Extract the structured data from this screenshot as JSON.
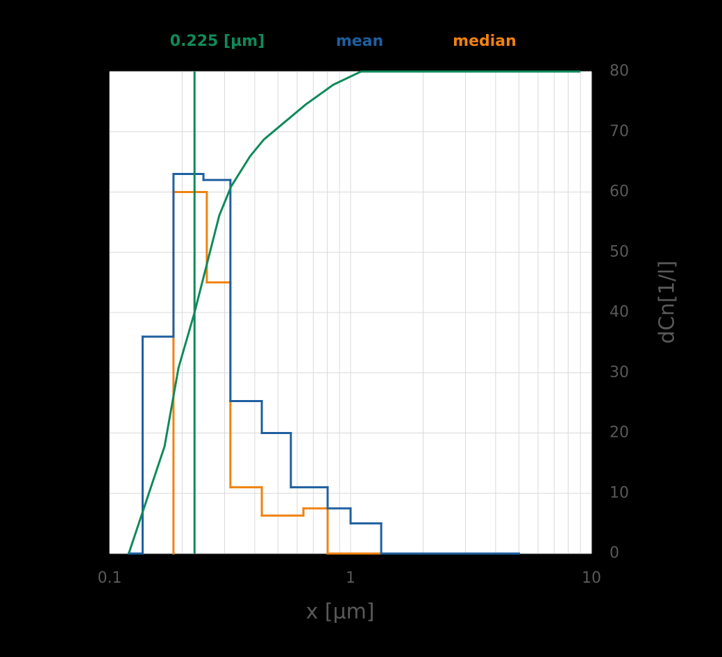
{
  "chart_data": {
    "type": "histogram",
    "xlabel": "x [µm]",
    "ylabel": "dCn[1/l]",
    "xscale": "log",
    "xlim": [
      0.1,
      10
    ],
    "xticks": [
      0.1,
      1,
      10
    ],
    "ylim": [
      0,
      80
    ],
    "yticks": [
      0,
      10,
      20,
      30,
      40,
      50,
      60,
      70,
      80
    ],
    "yaxis_side": "right",
    "grid": true,
    "series": [
      {
        "name": "median",
        "color": "#f0820f",
        "bins": [
          0.184,
          0.253,
          0.317,
          0.428,
          0.637,
          0.803,
          1.0,
          1.34
        ],
        "values": [
          60,
          45,
          11,
          6.3,
          7.5,
          0,
          0
        ]
      },
      {
        "name": "mean",
        "color": "#1f5fa0",
        "bins": [
          0.12,
          0.137,
          0.184,
          0.245,
          0.317,
          0.428,
          0.565,
          0.803,
          1.0,
          1.34,
          5.0
        ],
        "values": [
          0,
          36,
          63,
          62,
          25.3,
          20,
          11,
          7.5,
          5,
          0
        ]
      }
    ],
    "curve": {
      "type": "line",
      "color": "#0f8a5a",
      "x": [
        0.12,
        0.169,
        0.193,
        0.225,
        0.285,
        0.319,
        0.382,
        0.436,
        0.65,
        0.847,
        1.105,
        9.0
      ],
      "values": [
        0,
        17.8,
        30.8,
        40,
        56.1,
        60.9,
        65.9,
        68.7,
        74.5,
        77.8,
        80,
        80
      ]
    },
    "marker_line": {
      "name": "0.225 [µm]",
      "color": "#0f8a5a",
      "x": 0.225
    }
  }
}
